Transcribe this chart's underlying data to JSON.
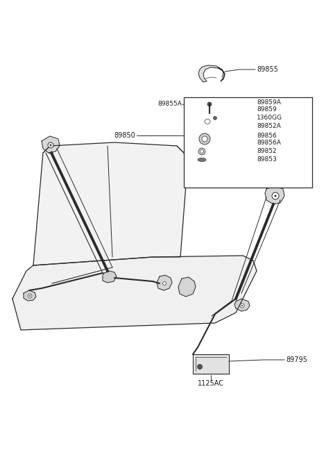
{
  "bg_color": "#ffffff",
  "line_color": "#2a2a2a",
  "label_color": "#1a1a1a",
  "font_size": 7.0,
  "top_cap_label": "89855",
  "box_label_left": "89855A",
  "box_label_89850": "89850",
  "box_right_labels": [
    "89859A",
    "89859",
    "1360GG",
    "89852A",
    "89856",
    "89856A",
    "89852",
    "89853"
  ],
  "bottom_label1": "1125AC",
  "bottom_label2": "89795"
}
